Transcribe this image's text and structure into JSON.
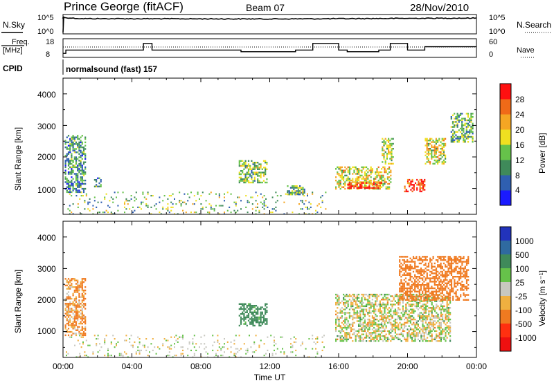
{
  "header": {
    "station": "Prince George (fitACF)",
    "beam": "Beam 07",
    "date": "28/Nov/2010",
    "cpid_label": "CPID",
    "cpid_value": "normalsound (fast) 157"
  },
  "ancillary": {
    "nsky_label": "N.Sky",
    "nsky_ticks": [
      "10^5",
      "10^0"
    ],
    "nsearch_label": "N.Search",
    "nsearch_ticks": [
      "10^5",
      "10^0"
    ],
    "freq_label_1": "Freq.",
    "freq_label_2": "[MHz]",
    "freq_ticks": [
      "18",
      "8"
    ],
    "nave_label": "Nave",
    "nave_ticks": [
      "60",
      "0"
    ]
  },
  "panels": {
    "ylabel": "Slant Range [km]",
    "xlabel": "Time UT",
    "y_ticks": [
      "1000",
      "2000",
      "3000",
      "4000"
    ],
    "x_ticks": [
      "00:00",
      "04:00",
      "08:00",
      "12:00",
      "16:00",
      "20:00",
      "00:00"
    ]
  },
  "colorbars": {
    "power": {
      "label": "Power [dB]",
      "ticks": [
        "4",
        "8",
        "12",
        "16",
        "20",
        "24",
        "28"
      ],
      "colors": [
        "#1a1aff",
        "#2f5fb0",
        "#3f8a5a",
        "#66c24a",
        "#f0e020",
        "#f5a623",
        "#f06a18",
        "#ff1010"
      ]
    },
    "velocity": {
      "label": "Velocity [m s⁻¹]",
      "ticks": [
        "1000",
        "500",
        "100",
        "25",
        "-25",
        "-100",
        "-500",
        "-1000"
      ],
      "colors": [
        "#2233bb",
        "#2f6aa0",
        "#3f8a5a",
        "#66c24a",
        "#c8c8c0",
        "#f0b040",
        "#f07a20",
        "#ff3010",
        "#ee1010"
      ]
    }
  },
  "chart_data": [
    {
      "type": "line",
      "title": "N.Sky / N.Search",
      "x": [
        "00:00",
        "01:00",
        "04:00",
        "08:00",
        "12:00",
        "16:00",
        "20:00",
        "24:00"
      ],
      "series": [
        {
          "name": "N.Sky",
          "values": [
            30000,
            15000,
            14000,
            13000,
            12000,
            14000,
            18000,
            22000
          ]
        }
      ],
      "ylim": [
        1,
        100000
      ],
      "scale": "log"
    },
    {
      "type": "line",
      "title": "Freq. / Nave",
      "x": [
        "00:00",
        "00:10",
        "04:30",
        "04:40",
        "05:10",
        "09:00",
        "10:20",
        "13:30",
        "14:30",
        "16:00",
        "16:30",
        "18:20",
        "19:00",
        "20:00",
        "21:00",
        "24:00"
      ],
      "series": [
        {
          "name": "Freq.",
          "values": [
            10,
            12,
            12,
            16,
            12,
            12,
            11,
            12,
            16,
            12,
            11,
            12,
            16,
            12,
            14,
            14
          ]
        }
      ],
      "ylim": [
        8,
        18
      ]
    },
    {
      "type": "heatmap",
      "title": "Power [dB]",
      "xlabel": "Time UT",
      "ylabel": "Slant Range [km]",
      "xlim": [
        0,
        24
      ],
      "ylim": [
        180,
        4500
      ],
      "regions": [
        {
          "time": [
            0.1,
            1.3
          ],
          "range": [
            900,
            2700
          ],
          "power": 10
        },
        {
          "time": [
            1.8,
            2.2
          ],
          "range": [
            1050,
            1350
          ],
          "power": 10
        },
        {
          "time": [
            10.2,
            11.8
          ],
          "range": [
            1200,
            1900
          ],
          "power": 14
        },
        {
          "time": [
            13.0,
            14.0
          ],
          "range": [
            800,
            1100
          ],
          "power": 12
        },
        {
          "time": [
            15.8,
            19.0
          ],
          "range": [
            1000,
            1700
          ],
          "power": 18
        },
        {
          "time": [
            16.5,
            18.5
          ],
          "range": [
            1000,
            1200
          ],
          "power": 28
        },
        {
          "time": [
            18.5,
            19.2
          ],
          "range": [
            1800,
            2600
          ],
          "power": 16
        },
        {
          "time": [
            19.8,
            21.0
          ],
          "range": [
            900,
            1300
          ],
          "power": 28
        },
        {
          "time": [
            21.0,
            22.2
          ],
          "range": [
            1800,
            2600
          ],
          "power": 18
        },
        {
          "time": [
            22.5,
            23.8
          ],
          "range": [
            2500,
            3400
          ],
          "power": 12
        }
      ]
    },
    {
      "type": "heatmap",
      "title": "Velocity [m s⁻¹]",
      "xlabel": "Time UT",
      "ylabel": "Slant Range [km]",
      "xlim": [
        0,
        24
      ],
      "ylim": [
        180,
        4500
      ],
      "regions": [
        {
          "time": [
            0.1,
            1.3
          ],
          "range": [
            900,
            2700
          ],
          "velocity": -100
        },
        {
          "time": [
            10.2,
            11.8
          ],
          "range": [
            1200,
            1900
          ],
          "velocity": 200
        },
        {
          "time": [
            15.8,
            22.5
          ],
          "range": [
            700,
            2200
          ],
          "velocity": 0
        },
        {
          "time": [
            19.5,
            23.5
          ],
          "range": [
            2000,
            3400
          ],
          "velocity": -300
        }
      ]
    }
  ]
}
